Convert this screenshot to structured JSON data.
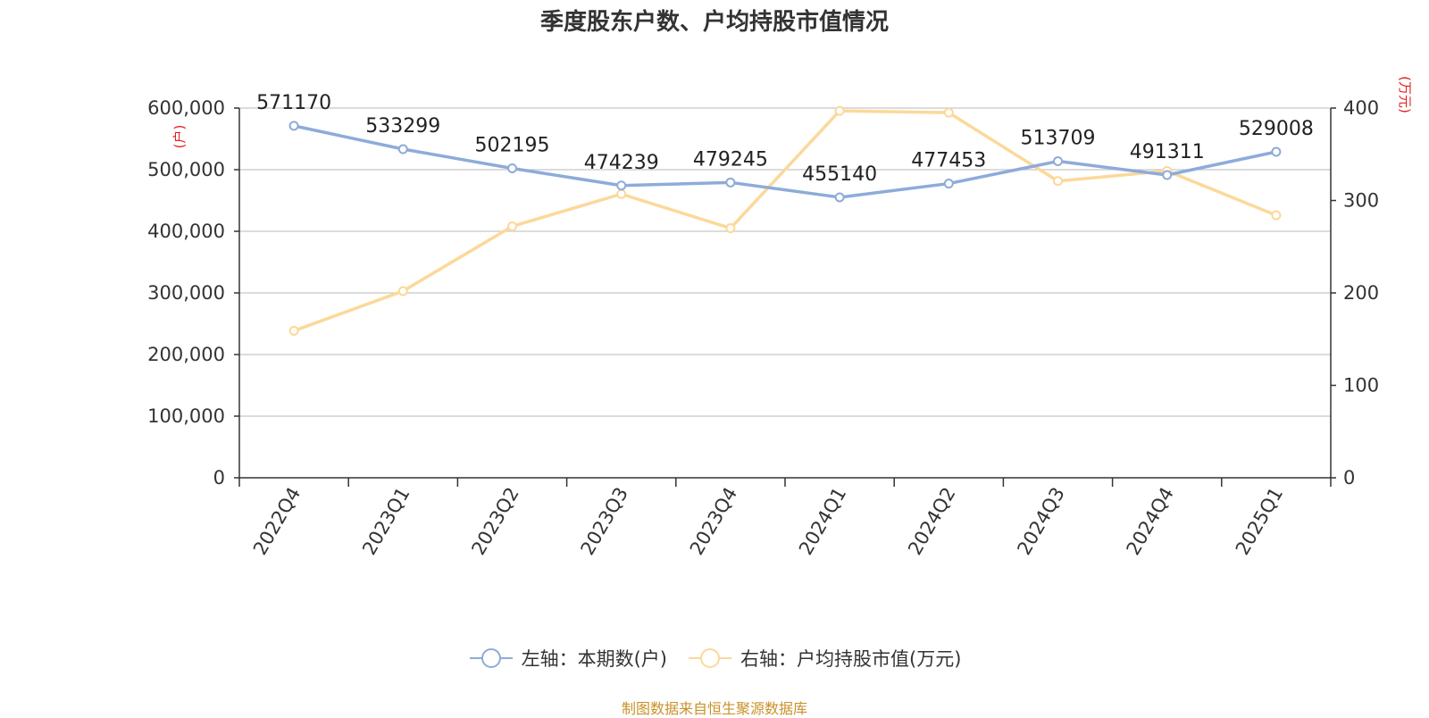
{
  "chart_data": {
    "type": "line",
    "title": "季度股东户数、户均持股市值情况",
    "categories": [
      "2022Q4",
      "2023Q1",
      "2023Q2",
      "2023Q3",
      "2023Q4",
      "2024Q1",
      "2024Q2",
      "2024Q3",
      "2024Q4",
      "2025Q1"
    ],
    "y_left": {
      "label": "(户)",
      "range": [
        0,
        600000
      ],
      "ticks": [
        "0",
        "100,000",
        "200,000",
        "300,000",
        "400,000",
        "500,000",
        "600,000"
      ]
    },
    "y_right": {
      "label": "(万元)",
      "range": [
        0,
        400
      ],
      "ticks": [
        "0",
        "100",
        "200",
        "300",
        "400"
      ]
    },
    "series": [
      {
        "name": "左轴：本期数(户)",
        "axis": "left",
        "color": "#8eabd9",
        "values": [
          571170,
          533299,
          502195,
          474239,
          479245,
          455140,
          477453,
          513709,
          491311,
          529008
        ],
        "data_labels": [
          "571170",
          "533299",
          "502195",
          "474239",
          "479245",
          "455140",
          "477453",
          "513709",
          "491311",
          "529008"
        ]
      },
      {
        "name": "右轴：户均持股市值(万元)",
        "axis": "right",
        "color": "#fcd89a",
        "values": [
          159,
          202,
          272,
          307,
          270,
          397,
          395,
          321,
          332,
          284
        ]
      }
    ],
    "grid": true,
    "legend_position": "bottom"
  },
  "source_text": "制图数据来自恒生聚源数据库"
}
